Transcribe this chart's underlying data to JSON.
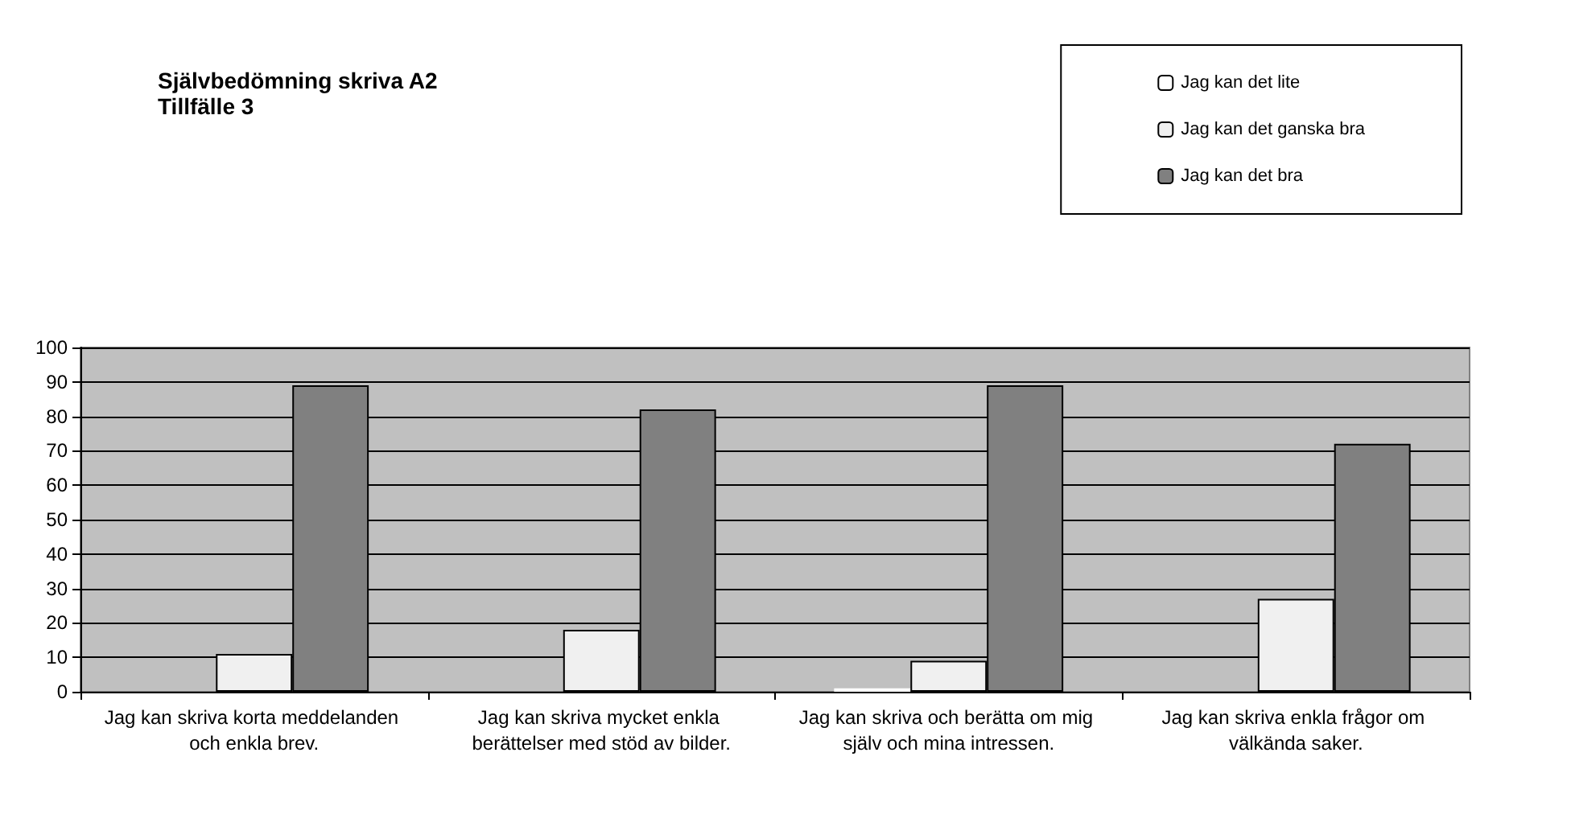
{
  "chart_data": {
    "type": "bar",
    "title": "Självbedömning skriva A2",
    "subtitle": "Tillfälle 3",
    "categories": [
      "Jag kan skriva korta meddelanden och enkla brev.",
      "Jag kan skriva mycket enkla berättelser med stöd av bilder.",
      "Jag kan skriva och berätta om mig själv och mina intressen.",
      "Jag kan skriva enkla frågor om välkända saker."
    ],
    "series": [
      {
        "name": "Jag kan det lite",
        "color": "#ffffff",
        "values": [
          0,
          0,
          1,
          0
        ]
      },
      {
        "name": "Jag kan det ganska bra",
        "color": "#f0f0f0",
        "values": [
          11,
          18,
          9,
          27
        ]
      },
      {
        "name": "Jag kan det bra",
        "color": "#808080",
        "values": [
          89,
          82,
          89,
          72
        ]
      }
    ],
    "ylim": [
      0,
      100
    ],
    "yticks": [
      0,
      10,
      20,
      30,
      40,
      50,
      60,
      70,
      80,
      90,
      100
    ],
    "grid": "y",
    "legend": "top right"
  }
}
